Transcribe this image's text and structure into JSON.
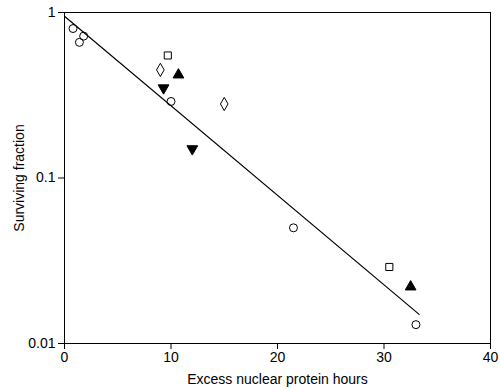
{
  "chart_data": {
    "type": "scatter",
    "xlabel": "Excess nuclear protein hours",
    "ylabel": "Surviving fraction",
    "xlim": [
      0,
      40
    ],
    "xticks": [
      0,
      10,
      20,
      30,
      40
    ],
    "ylim": [
      0.01,
      1
    ],
    "yticks": [
      0.01,
      0.1,
      1
    ],
    "log": "y",
    "grid": false,
    "series": [
      {
        "type": "scatter",
        "marker": "circle-open",
        "color": "#000000",
        "x": [
          0.8,
          1.4,
          1.8,
          10,
          21.5,
          33
        ],
        "values": [
          0.8,
          0.66,
          0.72,
          0.29,
          0.05,
          0.013
        ]
      },
      {
        "type": "scatter",
        "marker": "square-open",
        "color": "#000000",
        "x": [
          9.7,
          30.5
        ],
        "values": [
          0.55,
          0.029
        ]
      },
      {
        "type": "scatter",
        "marker": "diamond-open",
        "color": "#000000",
        "x": [
          9,
          15
        ],
        "values": [
          0.45,
          0.28
        ]
      },
      {
        "type": "scatter",
        "marker": "triangle-filled",
        "color": "#000000",
        "x": [
          10.7,
          32.5
        ],
        "values": [
          0.42,
          0.022
        ]
      },
      {
        "type": "scatter",
        "marker": "triangledown-filled",
        "color": "#000000",
        "x": [
          9.3,
          12
        ],
        "values": [
          0.35,
          0.15
        ]
      },
      {
        "type": "line",
        "line_style": "solid",
        "color": "#000000",
        "x": [
          0,
          33.3
        ],
        "values": [
          0.95,
          0.015
        ]
      }
    ]
  }
}
